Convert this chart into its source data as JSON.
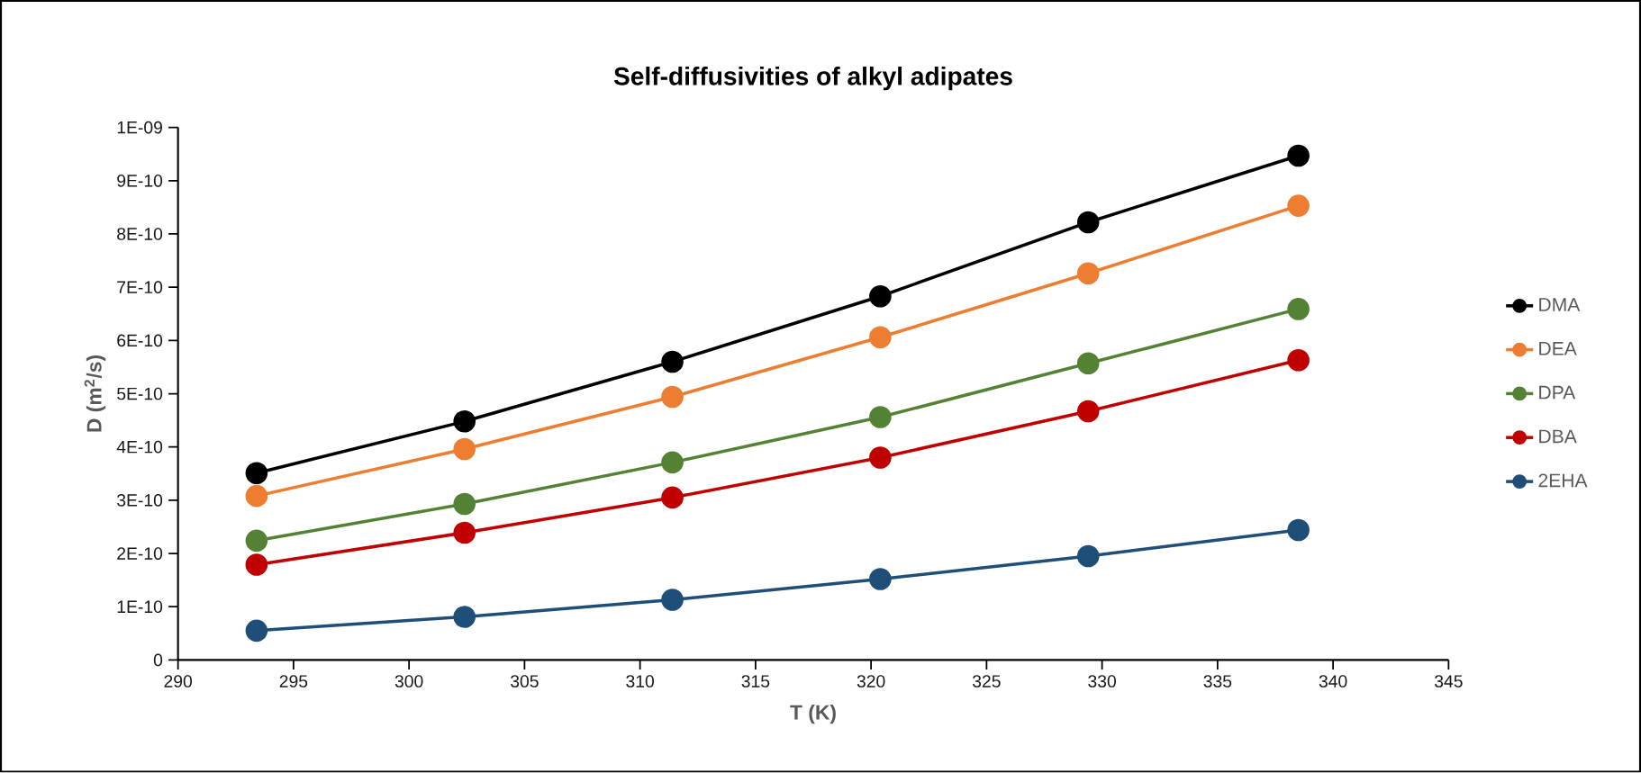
{
  "chart_data": {
    "type": "line",
    "title": "Self-diffusivities of alkyl adipates",
    "xlabel": "T (K)",
    "ylabel": "D (m$^{2}$/s)",
    "x": [
      293.4,
      302.4,
      311.4,
      320.4,
      329.4,
      338.5
    ],
    "series": [
      {
        "name": "DMA",
        "color": "#000000",
        "values": [
          3.51e-10,
          4.48e-10,
          5.6e-10,
          6.83e-10,
          8.22e-10,
          9.47e-10
        ]
      },
      {
        "name": "DEA",
        "color": "#ed7d31",
        "values": [
          3.08e-10,
          3.96e-10,
          4.94e-10,
          6.06e-10,
          7.26e-10,
          8.53e-10
        ]
      },
      {
        "name": "DPA",
        "color": "#548235",
        "values": [
          2.24e-10,
          2.93e-10,
          3.71e-10,
          4.56e-10,
          5.57e-10,
          6.59e-10
        ]
      },
      {
        "name": "DBA",
        "color": "#c00000",
        "values": [
          1.79e-10,
          2.39e-10,
          3.05e-10,
          3.8e-10,
          4.67e-10,
          5.63e-10
        ]
      },
      {
        "name": "2EHA",
        "color": "#1f4e79",
        "values": [
          5.5e-11,
          8.1e-11,
          1.13e-10,
          1.52e-10,
          1.95e-10,
          2.44e-10
        ]
      }
    ],
    "xlim": [
      290,
      345
    ],
    "xticks": [
      290,
      295,
      300,
      305,
      310,
      315,
      320,
      325,
      330,
      335,
      340,
      345
    ],
    "ylim": [
      0,
      1e-09
    ],
    "yticks": [
      0,
      {
        "value": 1e-10,
        "label": "1E-10"
      },
      {
        "value": 2e-10,
        "label": "2E-10"
      },
      {
        "value": 3e-10,
        "label": "3E-10"
      },
      {
        "value": 4e-10,
        "label": "4E-10"
      },
      {
        "value": 5e-10,
        "label": "5E-10"
      },
      {
        "value": 6e-10,
        "label": "6E-10"
      },
      {
        "value": 7e-10,
        "label": "7E-10"
      },
      {
        "value": 8e-10,
        "label": "8E-10"
      },
      {
        "value": 9e-10,
        "label": "9E-10"
      },
      {
        "value": 1e-09,
        "label": "1E-09"
      }
    ],
    "legend": "right",
    "marker": "circle",
    "line_style": "solid",
    "grid": false
  }
}
